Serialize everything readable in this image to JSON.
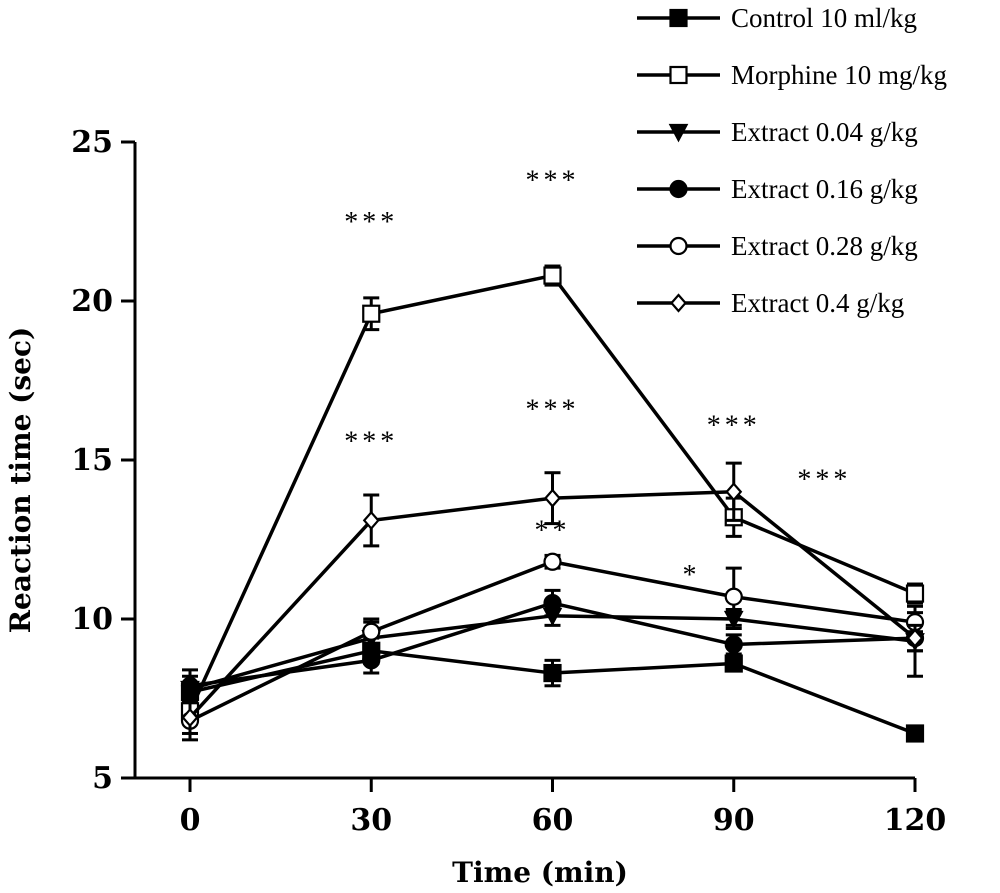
{
  "chart_data": {
    "type": "line",
    "xlabel": "Time (min)",
    "ylabel": "Reaction time (sec)",
    "x": [
      0,
      30,
      60,
      90,
      120
    ],
    "xticks": [
      "0",
      "30",
      "60",
      "90",
      "120"
    ],
    "yticks": [
      "5",
      "10",
      "15",
      "20",
      "25"
    ],
    "xlim": [
      0,
      120
    ],
    "ylim": [
      5,
      25
    ],
    "grid": false,
    "legend_position": "top-right",
    "series": [
      {
        "name": "Control 10 ml/kg",
        "marker": "square-filled",
        "values": [
          7.7,
          9.0,
          8.3,
          8.6,
          6.4
        ],
        "errors": [
          0.3,
          0.4,
          0.4,
          0.2,
          0.2
        ]
      },
      {
        "name": "Morphine 10 mg/kg",
        "marker": "square-open",
        "values": [
          7.1,
          19.6,
          20.8,
          13.2,
          10.8
        ],
        "errors": [
          0.4,
          0.5,
          0.3,
          0.6,
          0.3
        ]
      },
      {
        "name": "Extract 0.04 g/kg",
        "marker": "triangle-down-filled",
        "values": [
          7.8,
          9.4,
          10.1,
          10.0,
          9.3
        ],
        "errors": [
          0.4,
          0.5,
          0.3,
          0.3,
          1.1
        ]
      },
      {
        "name": "Extract 0.16 g/kg",
        "marker": "circle-filled",
        "values": [
          7.9,
          8.7,
          10.5,
          9.2,
          9.4
        ],
        "errors": [
          0.5,
          0.4,
          0.4,
          0.3,
          0.4
        ]
      },
      {
        "name": "Extract 0.28 g/kg",
        "marker": "circle-open",
        "values": [
          6.8,
          9.6,
          11.8,
          10.7,
          9.9
        ],
        "errors": [
          0.6,
          0.4,
          0.2,
          0.9,
          0.3
        ]
      },
      {
        "name": "Extract 0.4 g/kg",
        "marker": "diamond-open",
        "values": [
          6.9,
          13.1,
          13.8,
          14.0,
          9.4
        ],
        "errors": [
          0.5,
          0.8,
          0.8,
          0.9,
          0.4
        ]
      }
    ],
    "annotations": [
      {
        "text": "***",
        "x": 30,
        "y": 22.2
      },
      {
        "text": "***",
        "x": 60,
        "y": 23.5
      },
      {
        "text": "***",
        "x": 30,
        "y": 15.3
      },
      {
        "text": "***",
        "x": 60,
        "y": 16.3
      },
      {
        "text": "***",
        "x": 90,
        "y": 15.8
      },
      {
        "text": "***",
        "x": 105,
        "y": 14.1
      },
      {
        "text": "**",
        "x": 60,
        "y": 12.5
      },
      {
        "text": "*",
        "x": 83,
        "y": 11.1
      }
    ]
  }
}
